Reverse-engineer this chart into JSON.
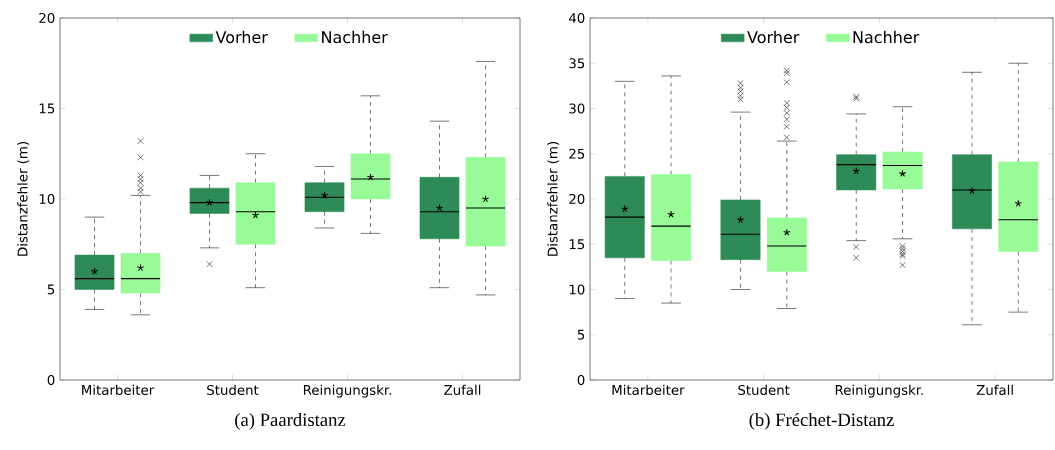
{
  "chart_data": [
    {
      "type": "box",
      "title": "(a) Paardistanz",
      "ylabel": "Distanzfehler (m)",
      "categories": [
        "Mitarbeiter",
        "Student",
        "Reinigungskr.",
        "Zufall"
      ],
      "ylim": [
        0,
        20
      ],
      "yticks": [
        0,
        5,
        10,
        15,
        20
      ],
      "legend": "top",
      "grid": false,
      "series": [
        {
          "name": "Vorher",
          "color": "#2e8b57",
          "boxes": [
            {
              "low": 3.9,
              "q1": 5.0,
              "median": 5.6,
              "q3": 6.9,
              "high": 9.0,
              "mean": 6.0
            },
            {
              "low": 7.3,
              "q1": 9.2,
              "median": 9.8,
              "q3": 10.6,
              "high": 11.3,
              "mean": 9.8,
              "outliers": [
                6.4
              ]
            },
            {
              "low": 8.4,
              "q1": 9.3,
              "median": 10.1,
              "q3": 10.9,
              "high": 11.8,
              "mean": 10.2
            },
            {
              "low": 5.1,
              "q1": 7.8,
              "median": 9.3,
              "q3": 11.2,
              "high": 14.3,
              "mean": 9.5
            }
          ]
        },
        {
          "name": "Nachher",
          "color": "#98fb98",
          "boxes": [
            {
              "low": 3.6,
              "q1": 4.8,
              "median": 5.6,
              "q3": 7.0,
              "high": 10.2,
              "mean": 6.2,
              "outliers": [
                13.2,
                12.3,
                11.3,
                11.1,
                10.9,
                10.6,
                10.4
              ]
            },
            {
              "low": 5.1,
              "q1": 7.5,
              "median": 9.3,
              "q3": 10.9,
              "high": 12.5,
              "mean": 9.1
            },
            {
              "low": 8.1,
              "q1": 10.0,
              "median": 11.1,
              "q3": 12.5,
              "high": 15.7,
              "mean": 11.2
            },
            {
              "low": 4.7,
              "q1": 7.4,
              "median": 9.5,
              "q3": 12.3,
              "high": 17.6,
              "mean": 10.0
            }
          ]
        }
      ]
    },
    {
      "type": "box",
      "title": "(b) Fréchet-Distanz",
      "ylabel": "Distanzfehler (m)",
      "categories": [
        "Mitarbeiter",
        "Student",
        "Reinigungskr.",
        "Zufall"
      ],
      "ylim": [
        0,
        40
      ],
      "yticks": [
        0,
        5,
        10,
        15,
        20,
        25,
        30,
        35,
        40
      ],
      "legend": "top",
      "grid": false,
      "series": [
        {
          "name": "Vorher",
          "color": "#2e8b57",
          "boxes": [
            {
              "low": 9.0,
              "q1": 13.5,
              "median": 18.0,
              "q3": 22.5,
              "high": 33.0,
              "mean": 18.9
            },
            {
              "low": 10.0,
              "q1": 13.3,
              "median": 16.1,
              "q3": 19.9,
              "high": 29.6,
              "mean": 17.7,
              "outliers": [
                32.8,
                32.3,
                31.9,
                31.4,
                31.0
              ]
            },
            {
              "low": 15.4,
              "q1": 21.0,
              "median": 23.8,
              "q3": 24.9,
              "high": 29.4,
              "mean": 23.1,
              "outliers": [
                31.3,
                31.1,
                14.7,
                13.5
              ]
            },
            {
              "low": 6.1,
              "q1": 16.7,
              "median": 21.0,
              "q3": 24.9,
              "high": 34.0,
              "mean": 20.9
            }
          ]
        },
        {
          "name": "Nachher",
          "color": "#98fb98",
          "boxes": [
            {
              "low": 8.5,
              "q1": 13.2,
              "median": 17.0,
              "q3": 22.7,
              "high": 33.6,
              "mean": 18.3
            },
            {
              "low": 7.9,
              "q1": 12.0,
              "median": 14.8,
              "q3": 17.9,
              "high": 26.4,
              "mean": 16.3,
              "outliers": [
                34.2,
                33.9,
                32.9,
                30.6,
                30.1,
                29.5,
                28.8,
                28.0,
                26.8
              ]
            },
            {
              "low": 15.6,
              "q1": 21.1,
              "median": 23.7,
              "q3": 25.2,
              "high": 30.2,
              "mean": 22.8,
              "outliers": [
                14.8,
                14.5,
                14.2,
                13.9,
                13.7,
                12.7
              ]
            },
            {
              "low": 7.5,
              "q1": 14.2,
              "median": 17.7,
              "q3": 24.1,
              "high": 35.0,
              "mean": 19.5
            }
          ]
        }
      ]
    }
  ]
}
